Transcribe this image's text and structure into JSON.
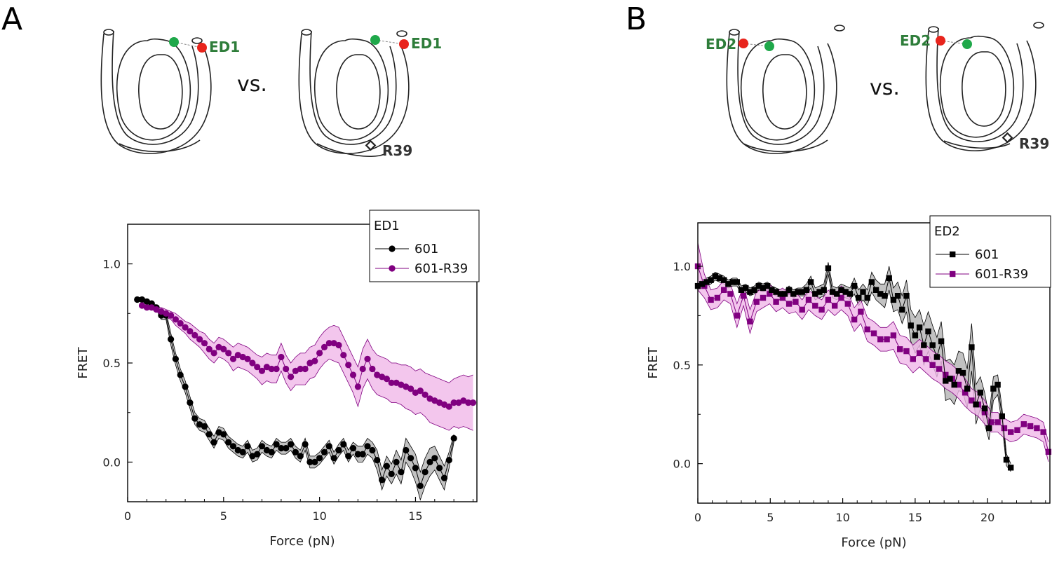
{
  "panels": {
    "A": {
      "letter": "A",
      "vs": "vs.",
      "dye_label": "ED1",
      "mutation_label": "R39"
    },
    "B": {
      "letter": "B",
      "vs": "vs.",
      "dye_label": "ED2",
      "mutation_label": "R39"
    }
  },
  "colors": {
    "series_601": "#000000",
    "series_601_band": "#b3b3b3",
    "series_r39": "#800080",
    "series_r39_band": "#f0b8e8",
    "donor": "#1fa84a",
    "acceptor": "#e8241c"
  },
  "chart_data": [
    {
      "type": "line",
      "panel": "A",
      "xlabel": "Force (pN)",
      "ylabel": "FRET",
      "xlim": [
        0,
        18.2
      ],
      "ylim": [
        -0.2,
        1.2
      ],
      "xticks": [
        0,
        5,
        10,
        15
      ],
      "yticks": [
        0.0,
        0.5,
        1.0
      ],
      "ytick_labels": [
        "0.0",
        "0.5",
        "1.0"
      ],
      "legend_title": "ED1",
      "legend_position": "top-right",
      "marker": "circle",
      "series": [
        {
          "name": "601",
          "color": "#000000",
          "band_color": "#b3b3b3",
          "x": [
            0.5,
            0.75,
            1.0,
            1.25,
            1.5,
            1.75,
            2.0,
            2.25,
            2.5,
            2.75,
            3.0,
            3.25,
            3.5,
            3.75,
            4.0,
            4.25,
            4.5,
            4.75,
            5.0,
            5.25,
            5.5,
            5.75,
            6.0,
            6.25,
            6.5,
            6.75,
            7.0,
            7.25,
            7.5,
            7.75,
            8.0,
            8.25,
            8.5,
            8.75,
            9.0,
            9.25,
            9.5,
            9.75,
            10.0,
            10.25,
            10.5,
            10.75,
            11.0,
            11.25,
            11.5,
            11.75,
            12.0,
            12.25,
            12.5,
            12.75,
            13.0,
            13.25,
            13.5,
            13.75,
            14.0,
            14.25,
            14.5,
            14.75,
            15.0,
            15.25,
            15.5,
            15.75,
            16.0,
            16.25,
            16.5,
            16.75,
            17.0
          ],
          "y": [
            0.82,
            0.82,
            0.81,
            0.8,
            0.78,
            0.74,
            0.74,
            0.62,
            0.52,
            0.44,
            0.38,
            0.3,
            0.22,
            0.19,
            0.18,
            0.14,
            0.1,
            0.15,
            0.14,
            0.1,
            0.08,
            0.06,
            0.05,
            0.08,
            0.03,
            0.04,
            0.08,
            0.06,
            0.05,
            0.09,
            0.07,
            0.07,
            0.09,
            0.05,
            0.03,
            0.09,
            0.0,
            0.0,
            0.02,
            0.05,
            0.08,
            0.02,
            0.06,
            0.09,
            0.03,
            0.07,
            0.04,
            0.04,
            0.08,
            0.06,
            0.01,
            -0.09,
            -0.02,
            -0.06,
            0.0,
            -0.05,
            0.06,
            0.02,
            -0.03,
            -0.12,
            -0.05,
            0.0,
            0.02,
            -0.03,
            -0.08,
            0.01,
            0.12
          ],
          "band": [
            0.01,
            0.01,
            0.01,
            0.01,
            0.01,
            0.02,
            0.02,
            0.03,
            0.03,
            0.03,
            0.03,
            0.03,
            0.03,
            0.03,
            0.03,
            0.03,
            0.03,
            0.03,
            0.03,
            0.03,
            0.03,
            0.03,
            0.03,
            0.03,
            0.03,
            0.03,
            0.03,
            0.03,
            0.03,
            0.03,
            0.03,
            0.03,
            0.03,
            0.03,
            0.03,
            0.03,
            0.03,
            0.03,
            0.03,
            0.03,
            0.03,
            0.03,
            0.03,
            0.03,
            0.03,
            0.03,
            0.04,
            0.04,
            0.04,
            0.04,
            0.05,
            0.05,
            0.05,
            0.05,
            0.06,
            0.06,
            0.06,
            0.06,
            0.07,
            0.07,
            0.07,
            0.07,
            0.06,
            0.06,
            0.06,
            0.04,
            0.02
          ]
        },
        {
          "name": "601-R39",
          "color": "#800080",
          "band_color": "#f0b8e8",
          "x": [
            0.75,
            1.0,
            1.25,
            1.5,
            1.75,
            2.0,
            2.25,
            2.5,
            2.75,
            3.0,
            3.25,
            3.5,
            3.75,
            4.0,
            4.25,
            4.5,
            4.75,
            5.0,
            5.25,
            5.5,
            5.75,
            6.0,
            6.25,
            6.5,
            6.75,
            7.0,
            7.25,
            7.5,
            7.75,
            8.0,
            8.25,
            8.5,
            8.75,
            9.0,
            9.25,
            9.5,
            9.75,
            10.0,
            10.25,
            10.5,
            10.75,
            11.0,
            11.25,
            11.5,
            11.75,
            12.0,
            12.25,
            12.5,
            12.75,
            13.0,
            13.25,
            13.5,
            13.75,
            14.0,
            14.25,
            14.5,
            14.75,
            15.0,
            15.25,
            15.5,
            15.75,
            16.0,
            16.25,
            16.5,
            16.75,
            17.0,
            17.25,
            17.5,
            17.75,
            18.0
          ],
          "y": [
            0.79,
            0.78,
            0.78,
            0.77,
            0.76,
            0.75,
            0.74,
            0.72,
            0.7,
            0.68,
            0.66,
            0.64,
            0.62,
            0.6,
            0.57,
            0.55,
            0.58,
            0.57,
            0.55,
            0.52,
            0.54,
            0.53,
            0.52,
            0.5,
            0.48,
            0.46,
            0.48,
            0.47,
            0.47,
            0.53,
            0.47,
            0.43,
            0.46,
            0.47,
            0.47,
            0.5,
            0.51,
            0.55,
            0.58,
            0.6,
            0.6,
            0.59,
            0.54,
            0.49,
            0.44,
            0.38,
            0.47,
            0.52,
            0.47,
            0.44,
            0.43,
            0.42,
            0.4,
            0.4,
            0.39,
            0.38,
            0.37,
            0.35,
            0.36,
            0.34,
            0.32,
            0.31,
            0.3,
            0.29,
            0.28,
            0.3,
            0.3,
            0.31,
            0.3,
            0.3
          ],
          "band": [
            0.01,
            0.01,
            0.01,
            0.01,
            0.02,
            0.02,
            0.02,
            0.03,
            0.03,
            0.03,
            0.04,
            0.04,
            0.04,
            0.05,
            0.05,
            0.05,
            0.05,
            0.05,
            0.05,
            0.06,
            0.06,
            0.06,
            0.06,
            0.06,
            0.06,
            0.07,
            0.07,
            0.07,
            0.07,
            0.07,
            0.07,
            0.07,
            0.07,
            0.08,
            0.08,
            0.08,
            0.08,
            0.08,
            0.08,
            0.08,
            0.09,
            0.09,
            0.09,
            0.09,
            0.09,
            0.1,
            0.1,
            0.1,
            0.1,
            0.1,
            0.1,
            0.1,
            0.1,
            0.1,
            0.1,
            0.11,
            0.11,
            0.11,
            0.11,
            0.11,
            0.12,
            0.12,
            0.12,
            0.12,
            0.12,
            0.12,
            0.13,
            0.13,
            0.13,
            0.14
          ]
        }
      ]
    },
    {
      "type": "line",
      "panel": "B",
      "xlabel": "Force (pN)",
      "ylabel": "FRET",
      "xlim": [
        0,
        24.3
      ],
      "ylim": [
        -0.2,
        1.22
      ],
      "xticks": [
        0,
        5,
        10,
        15,
        20
      ],
      "yticks": [
        0.0,
        0.5,
        1.0
      ],
      "ytick_labels": [
        "0.0",
        "0.5",
        "1.0"
      ],
      "legend_title": "ED2",
      "legend_position": "top-right",
      "marker": "square",
      "series": [
        {
          "name": "601",
          "color": "#000000",
          "band_color": "#b3b3b3",
          "x": [
            0.0,
            0.3,
            0.6,
            0.9,
            1.2,
            1.5,
            1.8,
            2.1,
            2.4,
            2.7,
            3.0,
            3.3,
            3.6,
            3.9,
            4.2,
            4.5,
            4.8,
            5.1,
            5.4,
            5.7,
            6.0,
            6.3,
            6.6,
            6.9,
            7.2,
            7.5,
            7.8,
            8.1,
            8.4,
            8.7,
            9.0,
            9.3,
            9.6,
            9.9,
            10.2,
            10.5,
            10.8,
            11.1,
            11.4,
            11.7,
            12.0,
            12.3,
            12.6,
            12.9,
            13.2,
            13.5,
            13.8,
            14.1,
            14.4,
            14.7,
            15.0,
            15.3,
            15.6,
            15.9,
            16.2,
            16.5,
            16.8,
            17.1,
            17.4,
            17.7,
            18.0,
            18.3,
            18.6,
            18.9,
            19.2,
            19.5,
            19.8,
            20.1,
            20.4,
            20.7,
            21.0,
            21.3,
            21.6
          ],
          "y": [
            0.9,
            0.91,
            0.92,
            0.93,
            0.95,
            0.94,
            0.93,
            0.91,
            0.92,
            0.92,
            0.88,
            0.89,
            0.87,
            0.88,
            0.9,
            0.89,
            0.9,
            0.88,
            0.87,
            0.86,
            0.86,
            0.88,
            0.86,
            0.87,
            0.87,
            0.88,
            0.92,
            0.86,
            0.87,
            0.88,
            0.99,
            0.87,
            0.86,
            0.88,
            0.87,
            0.86,
            0.9,
            0.84,
            0.87,
            0.84,
            0.92,
            0.88,
            0.86,
            0.85,
            0.94,
            0.83,
            0.85,
            0.78,
            0.85,
            0.7,
            0.65,
            0.69,
            0.6,
            0.67,
            0.6,
            0.54,
            0.62,
            0.42,
            0.43,
            0.4,
            0.47,
            0.46,
            0.38,
            0.59,
            0.3,
            0.36,
            0.28,
            0.18,
            0.38,
            0.4,
            0.24,
            0.02,
            -0.02
          ],
          "band": [
            0.02,
            0.02,
            0.02,
            0.02,
            0.02,
            0.02,
            0.02,
            0.02,
            0.02,
            0.02,
            0.02,
            0.02,
            0.02,
            0.02,
            0.02,
            0.02,
            0.02,
            0.02,
            0.02,
            0.02,
            0.02,
            0.02,
            0.02,
            0.02,
            0.02,
            0.03,
            0.03,
            0.03,
            0.03,
            0.03,
            0.03,
            0.03,
            0.03,
            0.03,
            0.03,
            0.03,
            0.04,
            0.04,
            0.04,
            0.04,
            0.05,
            0.05,
            0.05,
            0.06,
            0.06,
            0.06,
            0.07,
            0.07,
            0.08,
            0.08,
            0.09,
            0.09,
            0.1,
            0.1,
            0.1,
            0.1,
            0.1,
            0.1,
            0.1,
            0.1,
            0.1,
            0.1,
            0.1,
            0.12,
            0.1,
            0.08,
            0.08,
            0.06,
            0.06,
            0.05,
            0.04,
            0.03,
            0.02
          ]
        },
        {
          "name": "601-R39",
          "color": "#800080",
          "band_color": "#f0b8e8",
          "x": [
            0.0,
            0.45,
            0.9,
            1.35,
            1.8,
            2.25,
            2.7,
            3.15,
            3.6,
            4.05,
            4.5,
            4.95,
            5.4,
            5.85,
            6.3,
            6.75,
            7.2,
            7.65,
            8.1,
            8.55,
            9.0,
            9.45,
            9.9,
            10.35,
            10.8,
            11.25,
            11.7,
            12.15,
            12.6,
            13.05,
            13.5,
            13.95,
            14.4,
            14.85,
            15.3,
            15.75,
            16.2,
            16.65,
            17.1,
            17.55,
            18.0,
            18.45,
            18.9,
            19.35,
            19.8,
            20.25,
            20.7,
            21.15,
            21.6,
            22.05,
            22.5,
            22.95,
            23.4,
            23.85,
            24.2
          ],
          "y": [
            1.0,
            0.9,
            0.83,
            0.84,
            0.88,
            0.86,
            0.75,
            0.85,
            0.72,
            0.82,
            0.84,
            0.86,
            0.82,
            0.84,
            0.81,
            0.82,
            0.78,
            0.83,
            0.8,
            0.78,
            0.83,
            0.8,
            0.84,
            0.81,
            0.73,
            0.77,
            0.68,
            0.66,
            0.63,
            0.63,
            0.65,
            0.58,
            0.57,
            0.53,
            0.56,
            0.53,
            0.5,
            0.48,
            0.45,
            0.43,
            0.4,
            0.36,
            0.32,
            0.3,
            0.26,
            0.21,
            0.21,
            0.18,
            0.16,
            0.17,
            0.2,
            0.19,
            0.18,
            0.16,
            0.06
          ],
          "band": [
            0.12,
            0.06,
            0.05,
            0.05,
            0.05,
            0.05,
            0.06,
            0.05,
            0.06,
            0.05,
            0.05,
            0.05,
            0.05,
            0.05,
            0.05,
            0.05,
            0.05,
            0.05,
            0.05,
            0.05,
            0.05,
            0.05,
            0.06,
            0.06,
            0.06,
            0.06,
            0.06,
            0.06,
            0.06,
            0.06,
            0.07,
            0.07,
            0.07,
            0.07,
            0.07,
            0.07,
            0.07,
            0.07,
            0.07,
            0.07,
            0.07,
            0.07,
            0.06,
            0.06,
            0.06,
            0.05,
            0.05,
            0.05,
            0.05,
            0.05,
            0.05,
            0.05,
            0.05,
            0.05,
            0.05
          ]
        }
      ]
    }
  ]
}
